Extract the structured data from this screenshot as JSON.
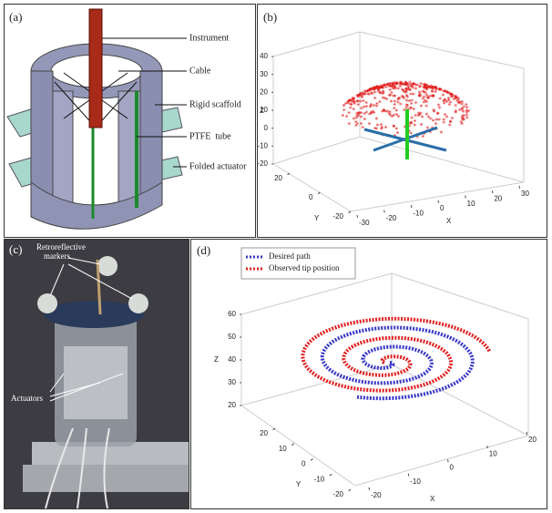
{
  "panels": [
    {
      "label": "(a)",
      "annotations": [
        "Instrument",
        "Cable",
        "Rigid scaffold",
        "PTFE  tube",
        "Folded actuator"
      ]
    },
    {
      "label": "(b)",
      "x_label": "X",
      "y_label": "Y",
      "z_label": "Z",
      "xticks": [
        -30,
        -20,
        -10,
        0,
        10,
        20,
        30
      ],
      "yticks": [
        20,
        0,
        -20
      ],
      "zticks": [
        -20,
        -10,
        0,
        10,
        20,
        30,
        40
      ]
    },
    {
      "label": "(c)",
      "annotations": [
        "Retroreflective",
        "markers",
        "Actuators"
      ]
    },
    {
      "label": "(d)",
      "x_label": "X",
      "y_label": "Y",
      "z_label": "Z",
      "xticks": [
        -20,
        -10,
        0,
        10,
        20
      ],
      "yticks": [
        20,
        10,
        0,
        -10,
        -20
      ],
      "zticks": [
        20,
        30,
        40,
        50,
        60
      ],
      "legend": [
        {
          "name": "Desired path",
          "color": "#3838c8"
        },
        {
          "name": "Observed tip position",
          "color": "#e02020"
        }
      ]
    }
  ]
}
